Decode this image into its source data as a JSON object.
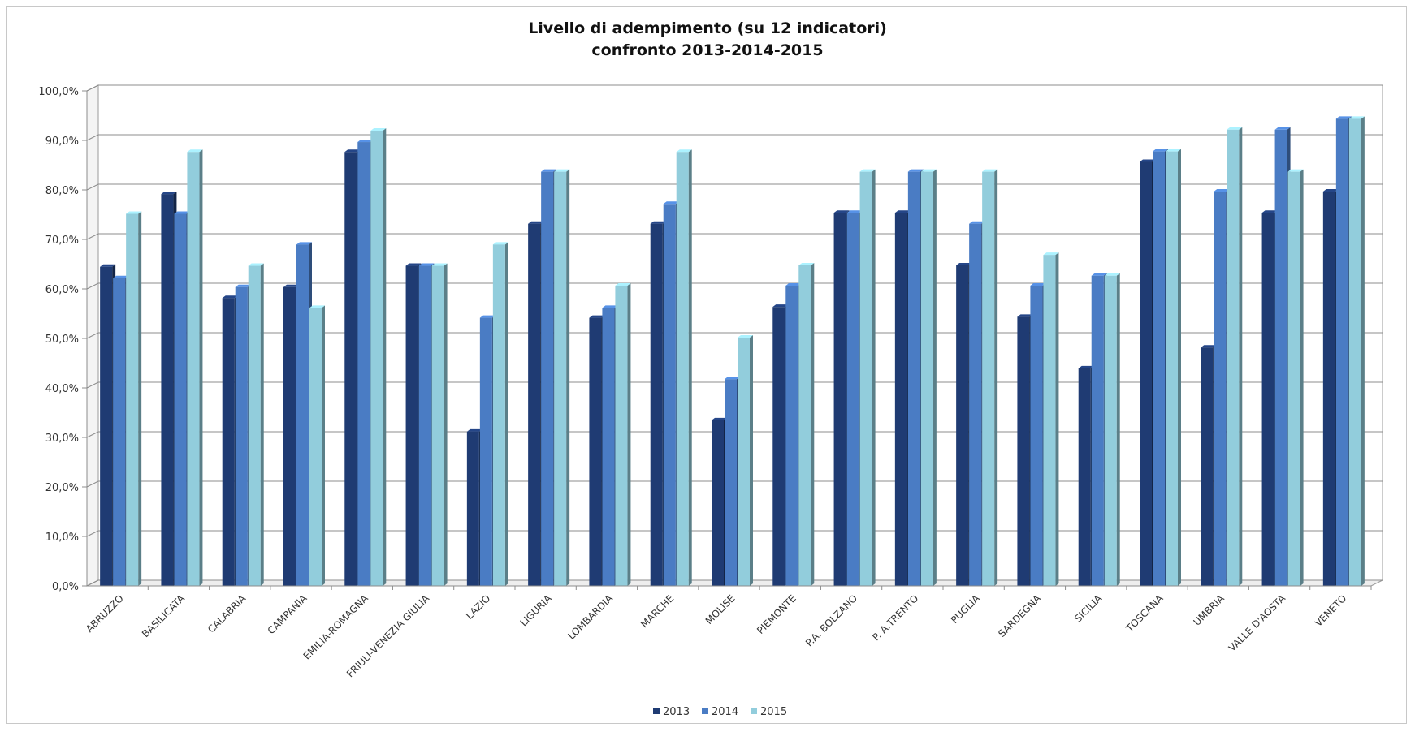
{
  "chart_data": {
    "type": "bar",
    "title": "Livello di adempimento (su 12 indicatori)",
    "subtitle": "confronto 2013-2014-2015",
    "xlabel": "",
    "ylabel": "",
    "ylim": [
      0,
      100
    ],
    "yticks": [
      "0,0%",
      "10,0%",
      "20,0%",
      "30,0%",
      "40,0%",
      "50,0%",
      "60,0%",
      "70,0%",
      "80,0%",
      "90,0%",
      "100,0%"
    ],
    "grid": true,
    "legend_position": "bottom",
    "categories": [
      "ABRUZZO",
      "BASILICATA",
      "CALABRIA",
      "CAMPANIA",
      "EMILIA-ROMAGNA",
      "FRIULI-VENEZIA GIULIA",
      "LAZIO",
      "LIGURIA",
      "LOMBARDIA",
      "MARCHE",
      "MOLISE",
      "PIEMONTE",
      "P.A. BOLZANO",
      "P. A.TRENTO",
      "PUGLIA",
      "SARDEGNA",
      "SICILIA",
      "TOSCANA",
      "UMBRIA",
      "VALLE D'AOSTA",
      "VENETO"
    ],
    "series": [
      {
        "name": "2013",
        "color": "#1f3b73",
        "values": [
          64.3,
          79.0,
          58.0,
          60.2,
          87.5,
          64.5,
          31.0,
          73.0,
          54.0,
          73.0,
          33.3,
          56.2,
          75.2,
          75.2,
          64.6,
          54.2,
          43.8,
          85.5,
          48.0,
          75.2,
          79.5
        ]
      },
      {
        "name": "2014",
        "color": "#4a7cc4",
        "values": [
          62.0,
          75.0,
          60.2,
          68.8,
          89.5,
          64.5,
          54.0,
          83.5,
          56.0,
          77.0,
          41.6,
          60.5,
          75.2,
          83.5,
          73.0,
          60.5,
          62.5,
          87.6,
          79.5,
          92.0,
          94.2
        ]
      },
      {
        "name": "2015",
        "color": "#92cddc",
        "values": [
          75.0,
          87.5,
          64.5,
          56.0,
          91.8,
          64.5,
          68.8,
          83.5,
          60.5,
          87.5,
          50.0,
          64.6,
          83.5,
          83.5,
          83.5,
          66.7,
          62.5,
          87.6,
          92.0,
          83.5,
          94.2
        ]
      }
    ]
  }
}
